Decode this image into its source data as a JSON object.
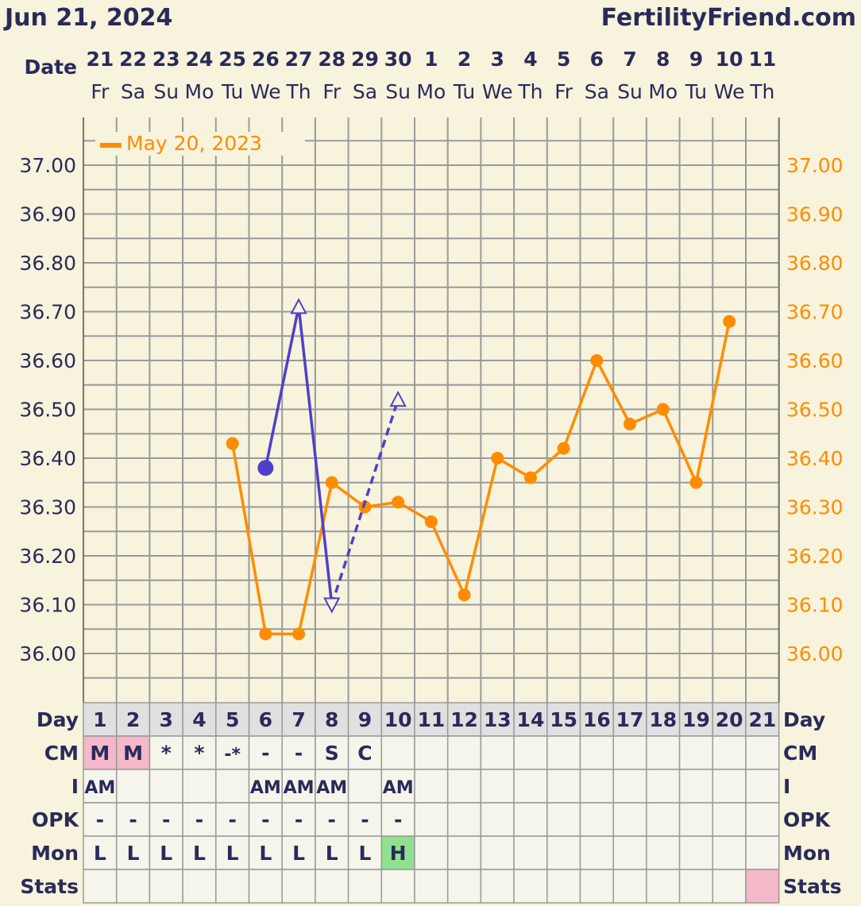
{
  "header": {
    "date": "Jun 21, 2024",
    "site": "FertilityFriend.com"
  },
  "labels": {
    "date": "Date",
    "day": "Day",
    "cm": "CM",
    "i": "I",
    "opk": "OPK",
    "mon": "Mon",
    "stats": "Stats"
  },
  "colors": {
    "background": "#f7f3dc",
    "grid": "#9a9a9a",
    "axis_text": "#2a2a5a",
    "series_orange": "#ff8c00",
    "series_purple": "#5040c8",
    "menses_pink": "#f4b8c8",
    "mon_high_green": "#90e090",
    "table_bg": "#f5f5ec",
    "day_row_bg": "#e0e0e0"
  },
  "dates": [
    "21",
    "22",
    "23",
    "24",
    "25",
    "26",
    "27",
    "28",
    "29",
    "30",
    "1",
    "2",
    "3",
    "4",
    "5",
    "6",
    "7",
    "8",
    "9",
    "10",
    "11"
  ],
  "weekdays": [
    "Fr",
    "Sa",
    "Su",
    "Mo",
    "Tu",
    "We",
    "Th",
    "Fr",
    "Sa",
    "Su",
    "Mo",
    "Tu",
    "We",
    "Th",
    "Fr",
    "Sa",
    "Su",
    "Mo",
    "Tu",
    "We",
    "Th"
  ],
  "chart_data": {
    "type": "line",
    "y_axis_labels": [
      "37.00",
      "36.90",
      "36.80",
      "36.70",
      "36.60",
      "36.50",
      "36.40",
      "36.30",
      "36.20",
      "36.10",
      "36.00"
    ],
    "ylim": [
      35.95,
      37.05
    ],
    "grid": true,
    "legend_position": "top-left",
    "days": [
      1,
      2,
      3,
      4,
      5,
      6,
      7,
      8,
      9,
      10,
      11,
      12,
      13,
      14,
      15,
      16,
      17,
      18,
      19,
      20,
      21
    ],
    "series": [
      {
        "name": "May 20, 2023",
        "color": "#ff8c00",
        "points": [
          [
            5,
            36.43
          ],
          [
            6,
            36.04
          ],
          [
            7,
            36.04
          ],
          [
            8,
            36.35
          ],
          [
            9,
            36.3
          ],
          [
            10,
            36.31
          ],
          [
            11,
            36.27
          ],
          [
            12,
            36.12
          ],
          [
            13,
            36.4
          ],
          [
            14,
            36.36
          ],
          [
            15,
            36.42
          ],
          [
            16,
            36.6
          ],
          [
            17,
            36.47
          ],
          [
            18,
            36.5
          ],
          [
            19,
            36.35
          ],
          [
            20,
            36.68
          ]
        ]
      },
      {
        "color": "#5040c8",
        "segments": [
          {
            "style": "solid",
            "points": [
              [
                6,
                36.38
              ],
              [
                7,
                36.71
              ],
              [
                8,
                36.1
              ]
            ]
          },
          {
            "style": "dashed",
            "points": [
              [
                8,
                36.1
              ],
              [
                10,
                36.52
              ]
            ]
          }
        ],
        "markers": [
          {
            "day": 6,
            "value": 36.38,
            "shape": "filled-circle"
          },
          {
            "day": 7,
            "value": 36.71,
            "shape": "open-triangle-up"
          },
          {
            "day": 8,
            "value": 36.1,
            "shape": "open-triangle-down"
          },
          {
            "day": 10,
            "value": 36.52,
            "shape": "open-triangle-up"
          }
        ]
      }
    ]
  },
  "table": {
    "cm": [
      "M",
      "M",
      "*",
      "*",
      "-*",
      "-",
      "-",
      "S",
      "C",
      "",
      "",
      "",
      "",
      "",
      "",
      "",
      "",
      "",
      "",
      "",
      ""
    ],
    "cm_highlight": [
      1,
      2
    ],
    "i": [
      "AM",
      "",
      "",
      "",
      "",
      "AM",
      "AM",
      "AM",
      "",
      "AM",
      "",
      "",
      "",
      "",
      "",
      "",
      "",
      "",
      "",
      "",
      ""
    ],
    "opk": [
      "-",
      "-",
      "-",
      "-",
      "-",
      "-",
      "-",
      "-",
      "-",
      "-",
      "",
      "",
      "",
      "",
      "",
      "",
      "",
      "",
      "",
      "",
      ""
    ],
    "mon": [
      "L",
      "L",
      "L",
      "L",
      "L",
      "L",
      "L",
      "L",
      "L",
      "H",
      "",
      "",
      "",
      "",
      "",
      "",
      "",
      "",
      "",
      "",
      ""
    ],
    "mon_highlight": [
      10
    ],
    "stats_highlight": [
      21
    ]
  }
}
